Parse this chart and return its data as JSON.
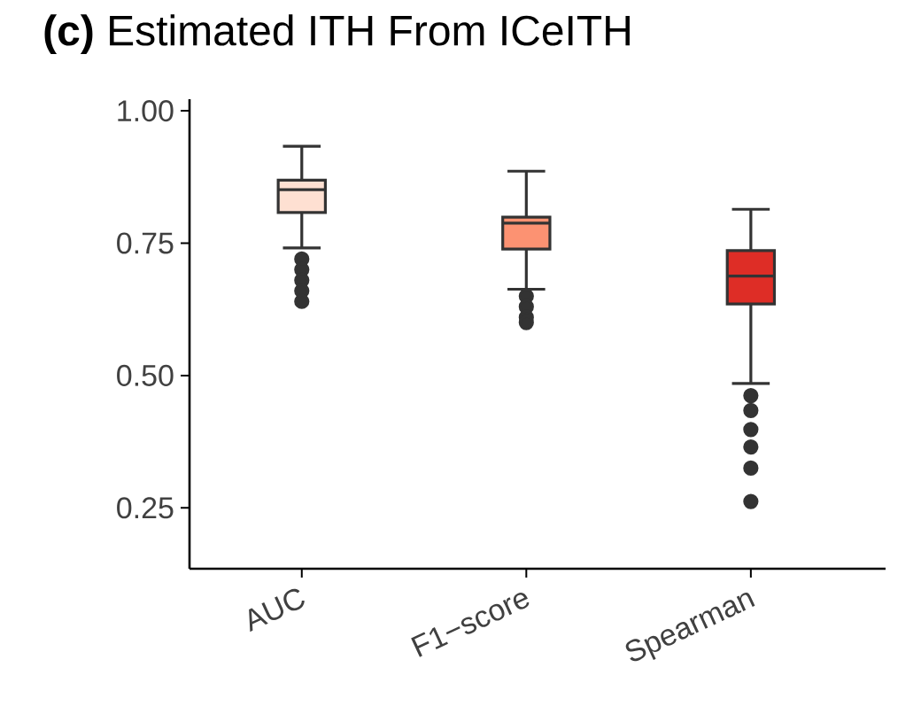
{
  "chart_data": {
    "type": "box",
    "title": "**(c)**   Estimated ITH From ICeITH",
    "categories": [
      "AUC",
      "F1−score",
      "Spearman"
    ],
    "colors": [
      "#fee0d2",
      "#fc9272",
      "#de2d26"
    ],
    "boxes": [
      {
        "low": 0.741,
        "q1": 0.808,
        "median": 0.851,
        "q3": 0.869,
        "high": 0.933,
        "outliers": [
          0.72,
          0.7,
          0.68,
          0.66,
          0.64
        ]
      },
      {
        "low": 0.663,
        "q1": 0.739,
        "median": 0.788,
        "q3": 0.799,
        "high": 0.886,
        "outliers": [
          0.65,
          0.63,
          0.61,
          0.6
        ]
      },
      {
        "low": 0.485,
        "q1": 0.635,
        "median": 0.688,
        "q3": 0.736,
        "high": 0.814,
        "outliers": [
          0.462,
          0.434,
          0.398,
          0.365,
          0.325,
          0.262
        ]
      }
    ],
    "ylim": [
      0.135,
      1.022
    ],
    "yticks": [
      {
        "value": 0.25,
        "label": "0.25"
      },
      {
        "value": 0.5,
        "label": "0.50"
      },
      {
        "value": 0.75,
        "label": "0.75"
      },
      {
        "value": 1.0,
        "label": "1.00"
      }
    ],
    "grid": false
  }
}
